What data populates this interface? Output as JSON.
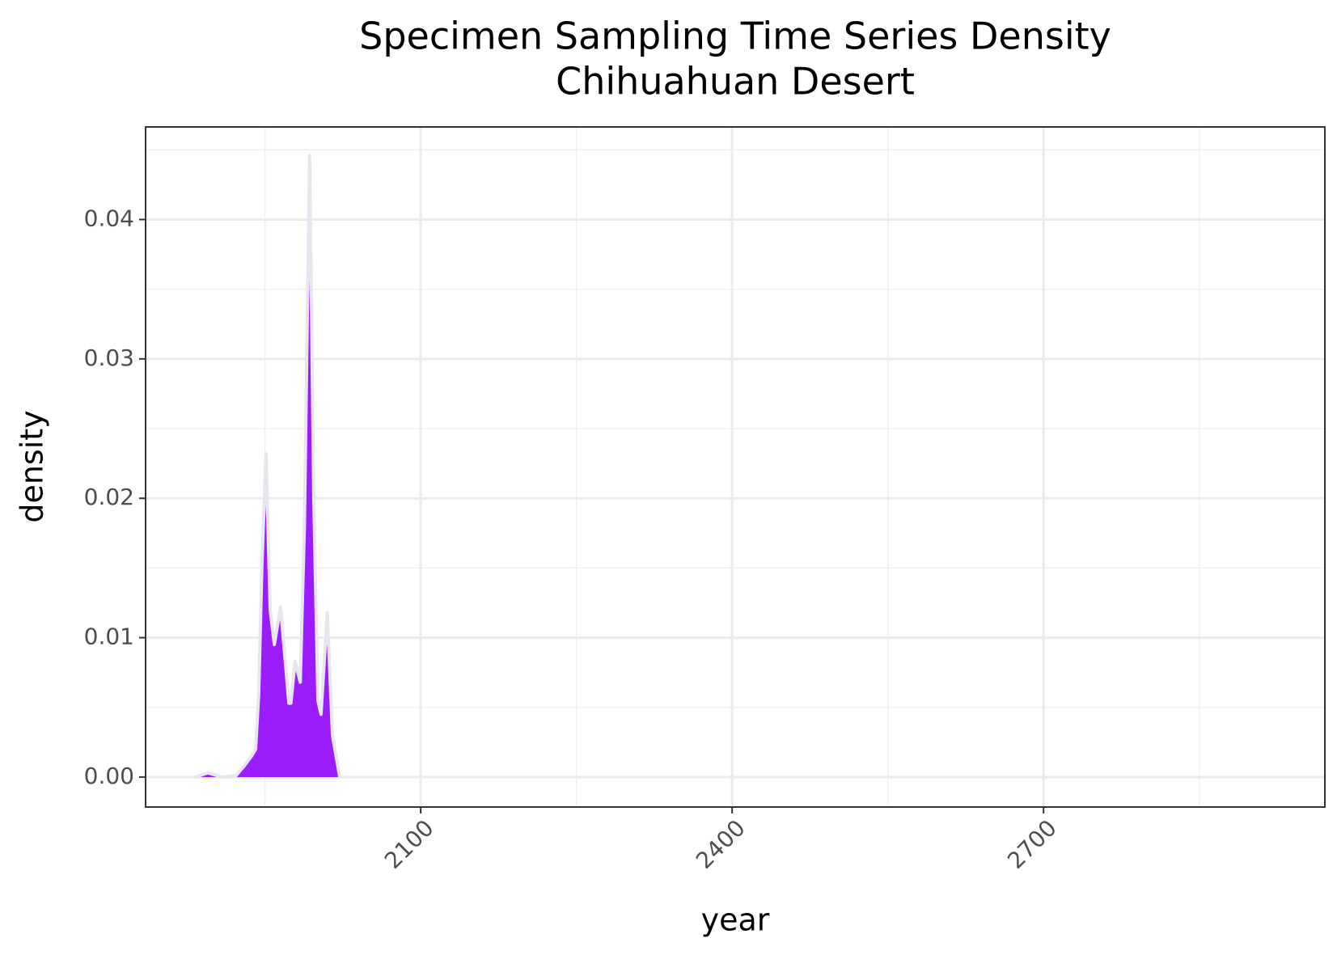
{
  "chart_data": {
    "type": "area",
    "title": "Specimen Sampling Time Series Density",
    "subtitle": "Chihuahuan Desert",
    "x_label": "year",
    "y_label": "density",
    "x": [
      1883,
      1895,
      1909,
      1922,
      1930,
      1937,
      1941,
      1944,
      1947,
      1951,
      1955,
      1959,
      1965,
      1973,
      1975,
      1979,
      1984,
      1988,
      1993,
      1997,
      2001,
      2004,
      2010,
      2015,
      2022
    ],
    "values": [
      0,
      0.0003,
      0,
      0.0001,
      0.0008,
      0.0015,
      0.002,
      0.006,
      0.015,
      0.0232,
      0.012,
      0.0095,
      0.0122,
      0.0053,
      0.0053,
      0.0083,
      0.0068,
      0.018,
      0.0446,
      0.02,
      0.0055,
      0.0045,
      0.0118,
      0.003,
      0
    ],
    "color": "#9b1cfc",
    "line_color": "#e6e6ee",
    "xlim": [
      1835,
      2971
    ],
    "ylim": [
      -0.00215,
      0.04664
    ],
    "xticks": [
      2100,
      2400,
      2700
    ],
    "yticks": [
      {
        "value": 0,
        "label": "0.00"
      },
      0.01,
      0.02,
      0.03,
      0.04
    ],
    "xminor": [
      1950,
      2250,
      2550,
      2850
    ],
    "yminor": [
      0.005,
      0.015,
      0.025,
      0.035,
      0.045
    ],
    "grid": true
  }
}
